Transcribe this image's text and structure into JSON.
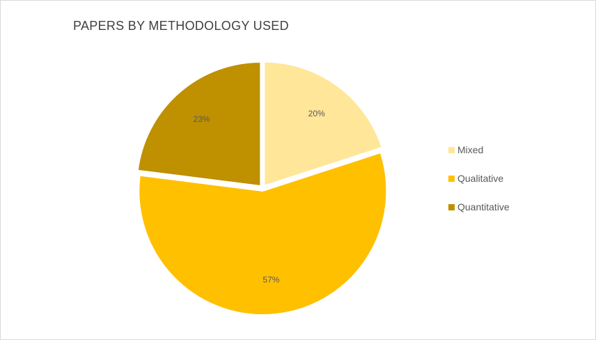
{
  "chart_data": {
    "type": "pie",
    "title": "PAPERS BY METHODOLOGY USED",
    "categories": [
      "Mixed",
      "Qualitative",
      "Quantitative"
    ],
    "values": [
      20,
      57,
      23
    ],
    "value_labels": [
      "20%",
      "57%",
      "23%"
    ],
    "colors": [
      "#FFE699",
      "#FFC000",
      "#BF9000"
    ],
    "exploded": true,
    "legend_position": "right"
  }
}
